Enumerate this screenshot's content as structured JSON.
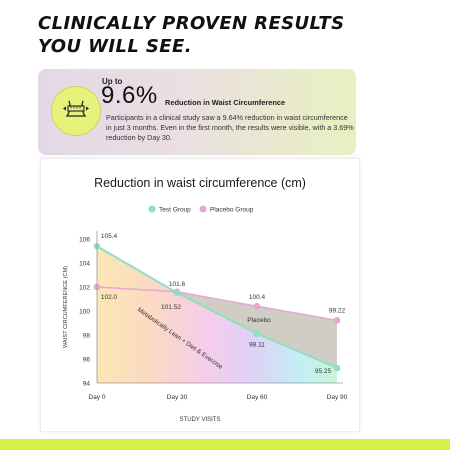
{
  "headline": {
    "line1": "CLINICALLY PROVEN RESULTS",
    "line2": "YOU WILL SEE."
  },
  "stat": {
    "prefix": "Up to",
    "value": "9.6%",
    "label": "Reduction in Waist Circumference",
    "description": "Participants in a clinical study saw a 9.64% reduction in waist circumference in just 3 months. Even in the first month, the results were visible, with a 3.69% reduction by Day 30.",
    "icon": "waist-measuring-tape-icon"
  },
  "chart_data": {
    "type": "line",
    "title": "Reduction in waist circumference (cm)",
    "xlabel": "STUDY VISITS",
    "ylabel": "WAIST CIRCUMFERENCE (CM)",
    "categories": [
      "Day 0",
      "Day 30",
      "Day 60",
      "Day 90"
    ],
    "ylim": [
      94,
      106
    ],
    "yticks": [
      94,
      96,
      98,
      100,
      102,
      104,
      106
    ],
    "legend_position": "top",
    "series": [
      {
        "name": "Test Group",
        "color": "#8fe0c0",
        "values": [
          105.4,
          101.52,
          98.11,
          95.25
        ],
        "labels": [
          "105.4",
          "101.52",
          "98.11",
          "95.25"
        ]
      },
      {
        "name": "Placebo Group",
        "color": "#e8a6d6",
        "values": [
          102.0,
          101.6,
          100.4,
          99.22
        ],
        "labels": [
          "102.0",
          "101.6",
          "100.4",
          "99.22"
        ]
      }
    ],
    "annotations": {
      "test_area": "Metabolically Lean + Diet & Exercise",
      "placebo_area": "Placebo"
    }
  }
}
